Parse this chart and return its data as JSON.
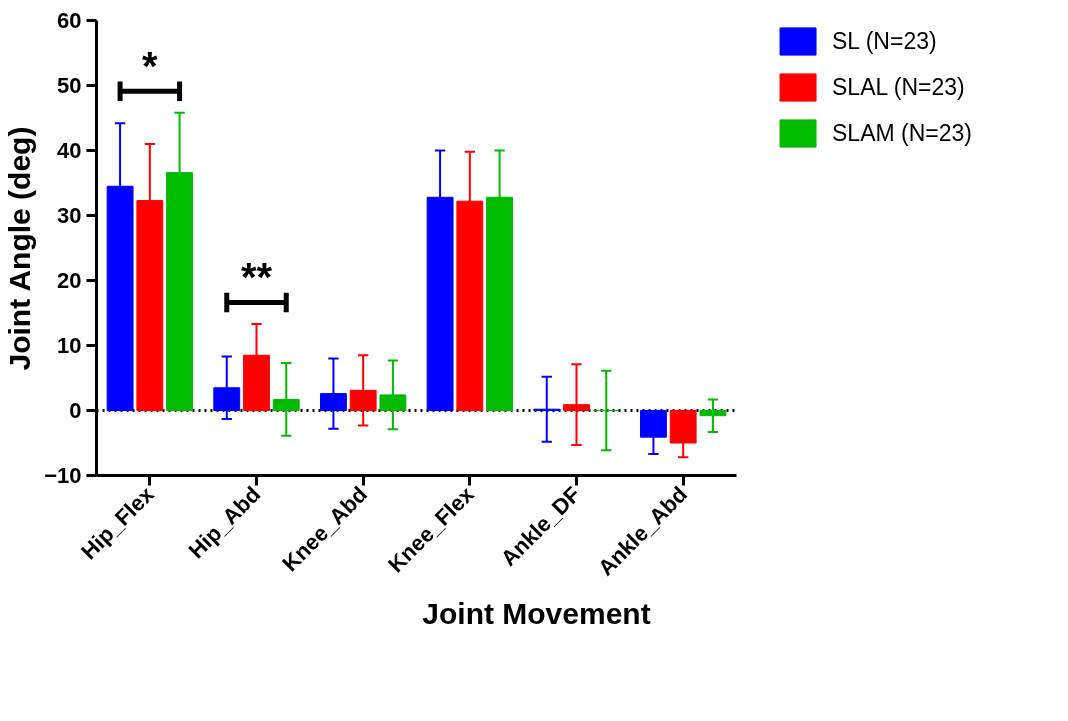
{
  "chart_data": {
    "type": "bar",
    "xlabel": "Joint Movement",
    "ylabel": "Joint Angle (deg)",
    "categories": [
      "Hip_Flex",
      "Hip_Abd",
      "Knee_Abd",
      "Knee_Flex",
      "Ankle_DF",
      "Ankle_Abd"
    ],
    "series": [
      {
        "name": "SL (N=23)",
        "color": "#0000ff",
        "values": [
          34.5,
          3.5,
          2.6,
          32.8,
          0.2,
          -4.1
        ],
        "errors": [
          9.7,
          4.8,
          5.4,
          7.2,
          5.0,
          2.6
        ]
      },
      {
        "name": "SLAL (N=23)",
        "color": "#ff0000",
        "values": [
          32.3,
          8.5,
          3.1,
          32.2,
          0.9,
          -5.0
        ],
        "errors": [
          8.7,
          4.8,
          5.4,
          7.6,
          6.2,
          2.2
        ]
      },
      {
        "name": "SLAM (N=23)",
        "color": "#00bb00",
        "values": [
          36.6,
          1.7,
          2.4,
          32.8,
          0.0,
          -0.8
        ],
        "errors": [
          9.2,
          5.6,
          5.3,
          7.2,
          6.1,
          2.5
        ]
      }
    ],
    "ylim": [
      -10,
      60
    ],
    "yticks": [
      -10,
      0,
      10,
      20,
      30,
      40,
      50,
      60
    ],
    "grid": false,
    "legend": "top right",
    "ref_lines": [
      {
        "axis": "y",
        "value": 0,
        "line_style": "dotted",
        "color": "#000000"
      }
    ],
    "annotations": [
      "*",
      "**"
    ]
  }
}
